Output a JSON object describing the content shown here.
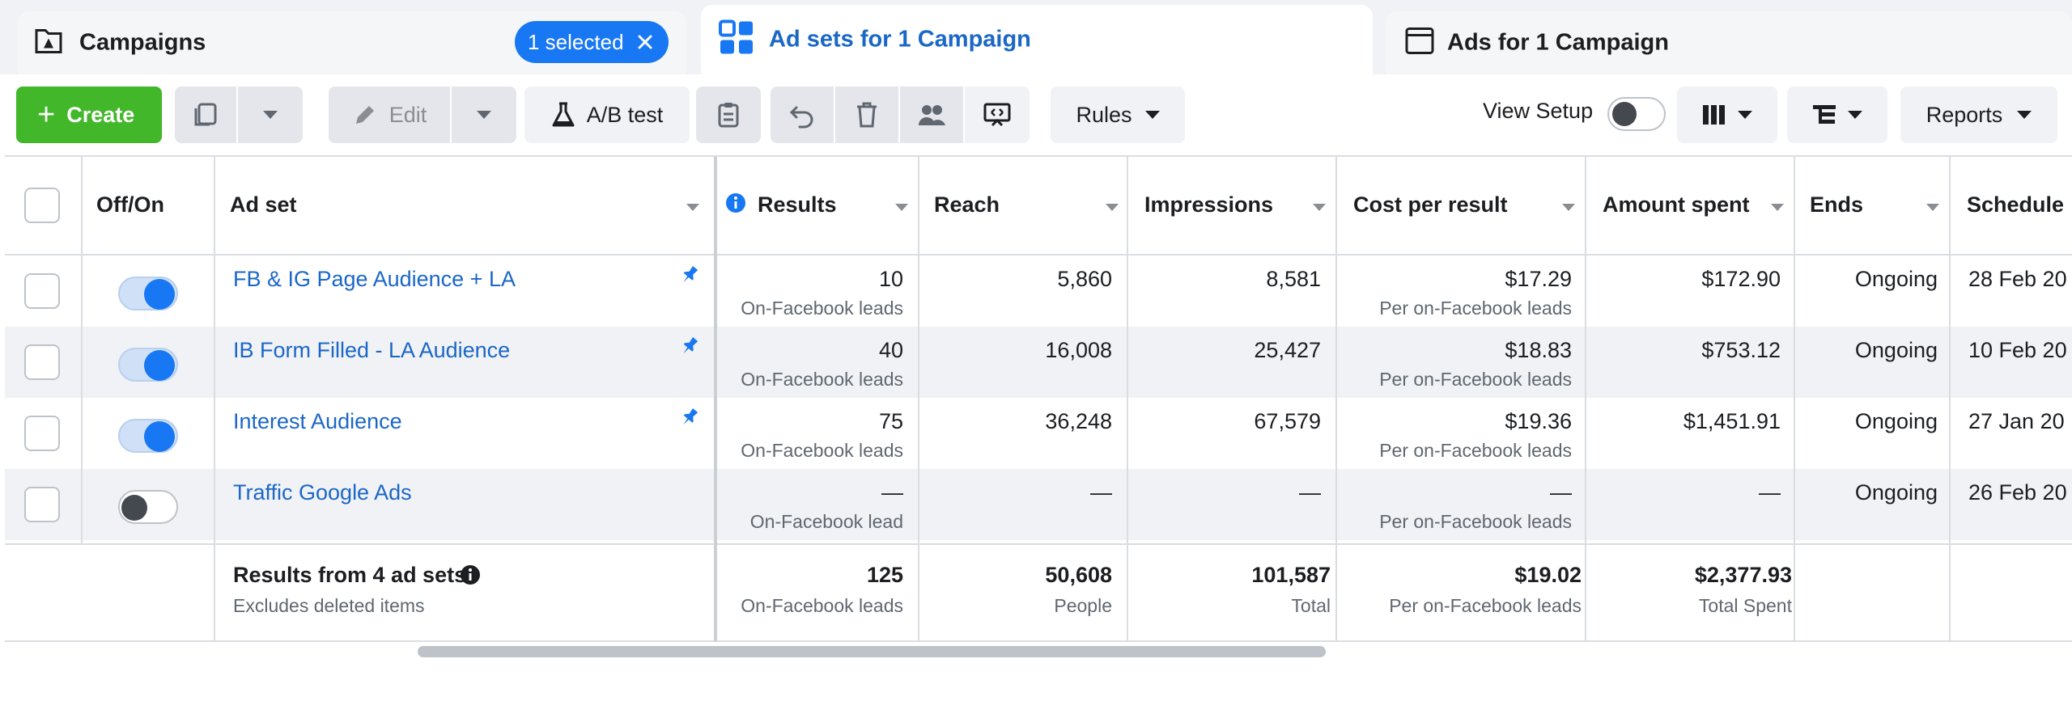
{
  "tabs": {
    "campaigns": {
      "label": "Campaigns",
      "selected_pill": "1 selected"
    },
    "adsets": {
      "label": "Ad sets for 1 Campaign"
    },
    "ads": {
      "label": "Ads for 1 Campaign"
    }
  },
  "toolbar": {
    "create_label": "Create",
    "edit_label": "Edit",
    "ab_test_label": "A/B test",
    "rules_label": "Rules",
    "view_setup_label": "View Setup",
    "view_setup_on": false,
    "reports_label": "Reports"
  },
  "columns": {
    "offon": "Off/On",
    "adset": "Ad set",
    "results": "Results",
    "reach": "Reach",
    "impressions": "Impressions",
    "cost_per_result": "Cost per result",
    "amount_spent": "Amount spent",
    "ends": "Ends",
    "schedule": "Schedule"
  },
  "rows": [
    {
      "name": "FB & IG Page Audience + LA",
      "on": true,
      "pinned": true,
      "results": "10",
      "results_sub": "On-Facebook leads",
      "reach": "5,860",
      "impressions": "8,581",
      "cost": "$17.29",
      "cost_sub": "Per on-Facebook leads",
      "spent": "$172.90",
      "ends": "Ongoing",
      "schedule": "28 Feb 20"
    },
    {
      "name": "IB Form Filled - LA Audience",
      "on": true,
      "pinned": true,
      "results": "40",
      "results_sub": "On-Facebook leads",
      "reach": "16,008",
      "impressions": "25,427",
      "cost": "$18.83",
      "cost_sub": "Per on-Facebook leads",
      "spent": "$753.12",
      "ends": "Ongoing",
      "schedule": "10 Feb 20"
    },
    {
      "name": "Interest Audience",
      "on": true,
      "pinned": true,
      "results": "75",
      "results_sub": "On-Facebook leads",
      "reach": "36,248",
      "impressions": "67,579",
      "cost": "$19.36",
      "cost_sub": "Per on-Facebook leads",
      "spent": "$1,451.91",
      "ends": "Ongoing",
      "schedule": "27 Jan 20"
    },
    {
      "name": "Traffic Google Ads",
      "on": false,
      "pinned": false,
      "results": "—",
      "results_sub": "On-Facebook lead",
      "reach": "—",
      "impressions": "—",
      "cost": "—",
      "cost_sub": "Per on-Facebook leads",
      "spent": "—",
      "ends": "Ongoing",
      "schedule": "26 Feb 20"
    }
  ],
  "summary": {
    "title": "Results from 4 ad sets",
    "subtitle": "Excludes deleted items",
    "results": "125",
    "results_sub": "On-Facebook leads",
    "reach": "50,608",
    "reach_sub": "People",
    "impressions": "101,587",
    "impressions_sub": "Total",
    "cost": "$19.02",
    "cost_sub": "Per on-Facebook leads",
    "spent": "$2,377.93",
    "spent_sub": "Total Spent"
  },
  "colors": {
    "accent": "#1877f2",
    "link": "#1b67c7",
    "create": "#42b72a"
  }
}
